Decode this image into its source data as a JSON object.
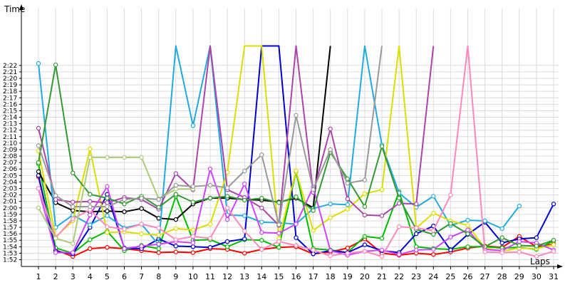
{
  "chart_data": {
    "type": "line",
    "ylabel": "Time",
    "xlabel": "Laps",
    "x": [
      1,
      2,
      3,
      4,
      5,
      6,
      7,
      8,
      9,
      10,
      11,
      12,
      13,
      14,
      15,
      16,
      17,
      18,
      19,
      20,
      21,
      22,
      23,
      24,
      25,
      26,
      27,
      28,
      29,
      30,
      31
    ],
    "y_ticks": [
      "1:52",
      "1:53",
      "1:54",
      "1:55",
      "1:56",
      "1:57",
      "1:58",
      "1:59",
      "2:00",
      "2:01",
      "2:02",
      "2:03",
      "2:04",
      "2:05",
      "2:06",
      "2:07",
      "2:08",
      "2:09",
      "2:10",
      "2:11",
      "2:12",
      "2:13",
      "2:14",
      "2:15",
      "2:16",
      "2:17",
      "2:18",
      "2:19",
      "2:20",
      "2:21",
      "2:22"
    ],
    "y_unit": "seconds",
    "ylim": [
      111,
      143
    ],
    "grid": true,
    "series": [
      {
        "color": "#ff0000",
        "values": [
          124.8,
          113.5,
          112.5,
          113.7,
          113.9,
          113.7,
          113.4,
          113.1,
          113.2,
          113.1,
          113.7,
          113.6,
          113.0,
          113.6,
          113.9,
          114.0,
          112.9,
          113.2,
          113.8,
          115.2,
          113.0,
          112.7,
          113.0,
          112.8,
          113.2,
          113.8,
          114.1,
          113.9,
          115.6,
          114.0,
          114.4
        ]
      },
      {
        "color": "#00bb00",
        "values": [
          126.8,
          113.8,
          113.0,
          115.1,
          116.4,
          113.4,
          114.2,
          113.7,
          121.8,
          115.0,
          115.1,
          114.0,
          115.1,
          115.0,
          113.9,
          125.6,
          113.7,
          113.5,
          113.1,
          115.6,
          115.3,
          122.5,
          114.0,
          113.7,
          113.6,
          114.0,
          114.0,
          113.8,
          113.9,
          113.6,
          114.9
        ]
      },
      {
        "color": "#0000cc",
        "values": [
          125.0,
          113.3,
          112.9,
          117.0,
          122.1,
          113.8,
          113.7,
          115.2,
          114.1,
          114.0,
          113.9,
          114.8,
          115.2,
          145.0,
          145.0,
          115.4,
          112.9,
          113.4,
          113.1,
          114.3,
          113.4,
          113.1,
          116.0,
          117.2,
          113.5,
          115.9,
          117.8,
          114.6,
          115.2,
          115.4,
          120.6
        ]
      },
      {
        "color": "#000000",
        "values": [
          125.6,
          120.8,
          119.6,
          119.4,
          119.5,
          119.4,
          119.9,
          118.4,
          118.2,
          120.6,
          121.5,
          121.5,
          121.3,
          121.2,
          120.9,
          121.5,
          120.0,
          145.0,
          null,
          null,
          null,
          null,
          null,
          null,
          null,
          null,
          null,
          null,
          null,
          null,
          null
        ]
      },
      {
        "color": "#22aadd",
        "values": [
          142.3,
          117.0,
          118.9,
          117.4,
          118.8,
          116.9,
          117.5,
          114.3,
          145.0,
          132.7,
          145.0,
          118.9,
          118.8,
          117.8,
          117.7,
          117.5,
          119.9,
          120.6,
          120.5,
          145.0,
          129.7,
          122.3,
          120.1,
          121.8,
          117.3,
          118.1,
          118.0,
          116.8,
          120.3,
          null,
          null
        ]
      },
      {
        "color": "#dddd00",
        "values": [
          128.8,
          115.5,
          118.0,
          129.1,
          116.2,
          116.3,
          116.0,
          115.8,
          116.8,
          116.6,
          117.5,
          125.5,
          145.0,
          145.0,
          115.3,
          125.7,
          116.5,
          118.5,
          119.8,
          122.2,
          122.8,
          145.0,
          116.9,
          119.2,
          118.0,
          117.3,
          113.8,
          113.3,
          113.8,
          113.7,
          114.3
        ]
      },
      {
        "color": "#aa44aa",
        "values": [
          132.3,
          121.3,
          120.9,
          121.0,
          120.8,
          121.6,
          121.3,
          119.8,
          125.3,
          122.8,
          145.0,
          122.8,
          121.6,
          120.0,
          117.3,
          145.0,
          122.4,
          132.2,
          121.4,
          118.9,
          118.8,
          120.7,
          120.6,
          145.0,
          null,
          null,
          null,
          null,
          null,
          null,
          null
        ]
      },
      {
        "color": "#cc44ff",
        "values": [
          123.0,
          113.1,
          113.1,
          118.9,
          123.3,
          113.7,
          114.1,
          114.4,
          114.8,
          114.6,
          126.0,
          118.2,
          123.7,
          116.2,
          116.1,
          117.5,
          123.2,
          113.4,
          112.7,
          113.3,
          113.5,
          112.8,
          113.5,
          113.6,
          115.5,
          116.6,
          113.6,
          113.4,
          114.8,
          114.6,
          113.5
        ]
      },
      {
        "color": "#339933",
        "values": [
          127.0,
          142.1,
          125.4,
          122.1,
          121.5,
          120.6,
          121.8,
          120.1,
          122.1,
          120.9,
          121.5,
          121.8,
          121.2,
          121.5,
          120.8,
          121.7,
          119.6,
          128.6,
          124.5,
          120.2,
          129.5,
          121.5,
          116.7,
          115.9,
          117.6,
          116.0,
          114.0,
          115.4,
          114.2,
          114.1,
          115.0
        ]
      },
      {
        "color": "#ff88bb",
        "values": [
          123.0,
          115.4,
          118.3,
          119.7,
          117.1,
          116.7,
          117.5,
          116.9,
          115.1,
          115.6,
          115.3,
          120.0,
          116.4,
          113.6,
          114.8,
          114.2,
          113.5,
          112.6,
          113.0,
          113.3,
          112.5,
          117.1,
          116.9,
          116.5,
          122.0,
          145.0,
          113.2,
          113.1,
          113.2,
          112.5,
          113.3
        ]
      },
      {
        "color": "#aacc77",
        "values": [
          120.0,
          115.3,
          114.5,
          127.8,
          127.8,
          127.8,
          127.8,
          121.4,
          122.9,
          122.9,
          null,
          null,
          null,
          null,
          null,
          null,
          null,
          null,
          null,
          null,
          null,
          null,
          null,
          null,
          null,
          null,
          null,
          null,
          null,
          null,
          null
        ]
      },
      {
        "color": "#999999",
        "values": [
          129.6,
          121.9,
          120.2,
          120.2,
          120.2,
          121.3,
          121.5,
          121.3,
          123.5,
          123.3,
          123.5,
          123.1,
          125.7,
          128.2,
          117.4,
          134.3,
          122.8,
          129.0,
          123.8,
          124.3,
          145.0,
          null,
          null,
          null,
          null,
          null,
          null,
          null,
          null,
          null,
          null
        ]
      }
    ]
  }
}
